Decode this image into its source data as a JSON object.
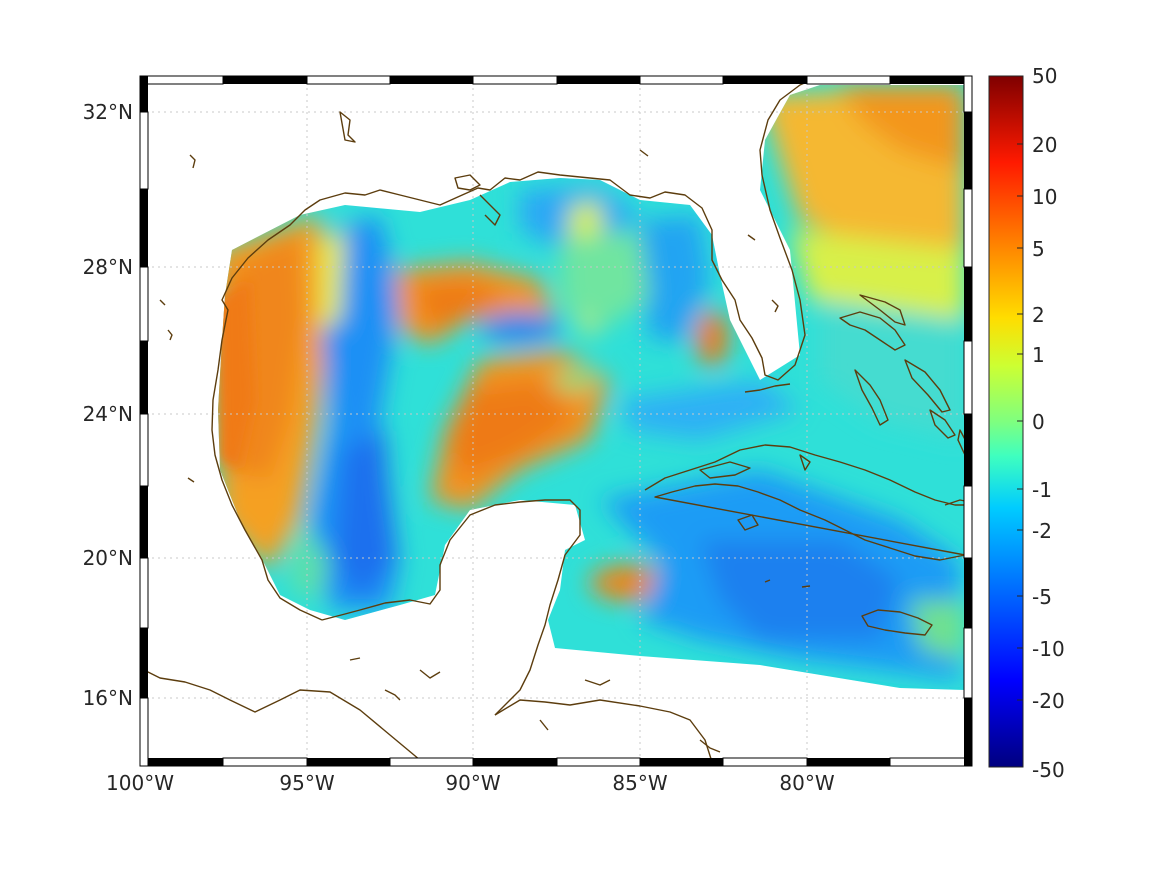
{
  "x_ticks": [
    "100°W",
    "95°W",
    "90°W",
    "85°W",
    "80°W"
  ],
  "y_ticks": [
    "32°N",
    "28°N",
    "24°N",
    "20°N",
    "16°N"
  ],
  "colorbar": {
    "tick_labels": [
      "50",
      "20",
      "10",
      "5",
      "2",
      "1",
      "0",
      "-1",
      "-2",
      "-5",
      "-10",
      "-20",
      "-50"
    ],
    "colormap": "jet",
    "range": [
      -50,
      50
    ],
    "scale": "symmetric-log"
  },
  "map": {
    "lon_range": [
      -100,
      -75
    ],
    "lat_range": [
      14.3,
      33
    ],
    "grid": true,
    "coastline_color": "#5c3d0e",
    "land_color": "#ffffff"
  },
  "colors": {
    "warm_anomaly": "#f08a1a",
    "cool_anomaly": "#1e90ff",
    "neutral": "#2fe0d8"
  }
}
